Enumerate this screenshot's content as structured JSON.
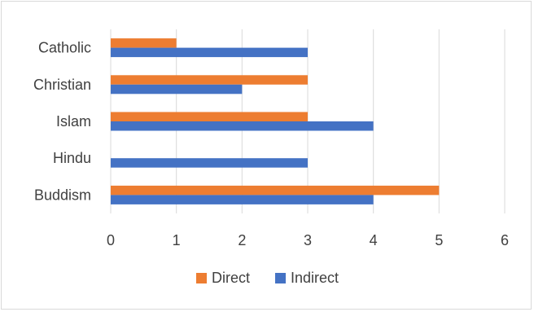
{
  "chart_data": {
    "type": "bar",
    "orientation": "horizontal",
    "title": "",
    "xlabel": "",
    "ylabel": "",
    "categories": [
      "Catholic",
      "Christian",
      "Islam",
      "Hindu",
      "Buddism"
    ],
    "series": [
      {
        "name": "Direct",
        "color": "#ed7d31",
        "values": [
          1,
          3,
          3,
          0,
          5
        ]
      },
      {
        "name": "Indirect",
        "color": "#4472c4",
        "values": [
          3,
          2,
          4,
          3,
          4
        ]
      }
    ],
    "xlim": [
      0,
      6
    ],
    "xticks": [
      "0",
      "1",
      "2",
      "3",
      "4",
      "5",
      "6"
    ],
    "grid": true,
    "gridline_color": "#d9d9d9",
    "legend_position": "bottom"
  }
}
